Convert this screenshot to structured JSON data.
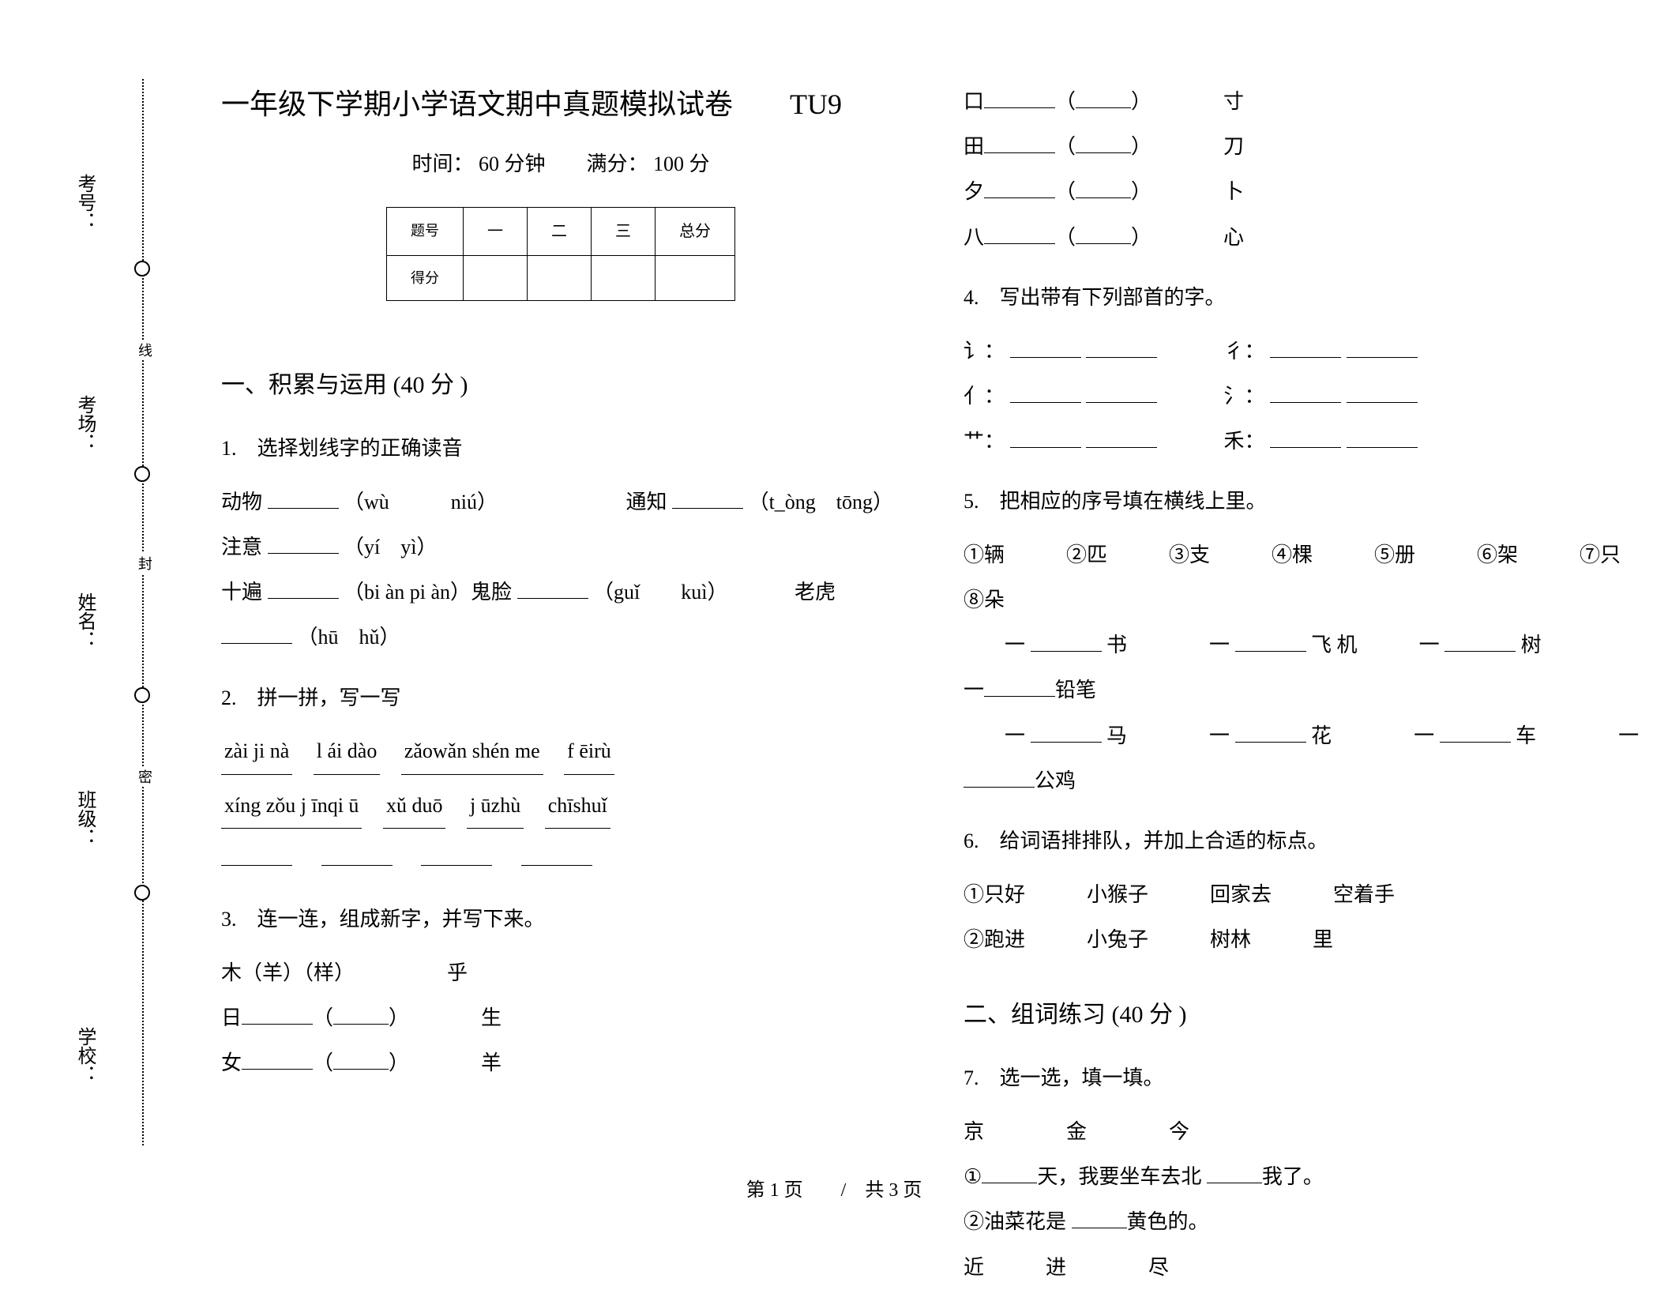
{
  "binding": {
    "labels": [
      "考号：",
      "考场：",
      "姓名：",
      "班级：",
      "学校："
    ],
    "markers": [
      "线",
      "封",
      "密"
    ]
  },
  "header": {
    "title": "一年级下学期小学语文期中真题模拟试卷　　TU9",
    "subtitle": "时间： 60 分钟　　满分： 100 分"
  },
  "scoreTable": {
    "headers": [
      "题号",
      "一",
      "二",
      "三",
      "总分"
    ],
    "rowLabel": "得分"
  },
  "sections": {
    "s1": "一、积累与运用  (40 分 )",
    "s2": "二、组词练习  (40 分 )"
  },
  "q1": {
    "title": "1.　选择划线字的正确读音",
    "line1a": "动物",
    "line1b": "（wù　　　niú）",
    "line1c": "通知",
    "line1d": "（t_òng　tōng）",
    "line1e": "注意",
    "line1f": "（yí　yì）",
    "line2a": "十遍",
    "line2b": "（bi àn pi àn）鬼脸",
    "line2c": "（guǐ　　kuì）",
    "line2d": "老虎",
    "line2e": "（hū　hǔ）"
  },
  "q2": {
    "title": "2.　拼一拼，写一写",
    "pinyins1": [
      "zài ji nà",
      "l ái dào",
      "zǎowǎn shén me",
      "f ēirù"
    ],
    "pinyins2": [
      "xíng zǒu j īnqi ū",
      "xǔ duō",
      "j ūzhù",
      "chīshuǐ"
    ]
  },
  "q3": {
    "title": "3.　连一连，组成新字，并写下来。",
    "rows": [
      {
        "left": "木（羊）（样）",
        "right": "乎"
      },
      {
        "left": "日",
        "right": "生"
      },
      {
        "left": "女",
        "right": "羊"
      },
      {
        "left": "口",
        "right": "寸"
      },
      {
        "left": "田",
        "right": "刀"
      },
      {
        "left": "夕",
        "right": "卜"
      },
      {
        "left": "八",
        "right": "心"
      }
    ]
  },
  "q4": {
    "title": "4.　写出带有下列部首的字。",
    "radicals": [
      "讠：",
      "彳：",
      "亻：",
      "氵：",
      "艹：",
      "禾："
    ]
  },
  "q5": {
    "title": "5.　把相应的序号填在横线上里。",
    "options": "①辆　　　②匹　　　③支　　　④棵　　　⑤册　　　⑥架　　　⑦只　　　⑧朵",
    "items": [
      [
        "书",
        "飞 机",
        ""
      ],
      [
        "树",
        "铅笔",
        ""
      ],
      [
        "马",
        "花",
        ""
      ],
      [
        "车",
        "公鸡",
        ""
      ]
    ],
    "tail1": "一",
    "tail2": "一",
    "tailWords": [
      "树",
      "车"
    ]
  },
  "q6": {
    "title": "6.　给词语排排队，并加上合适的标点。",
    "line1": "①只好　　　小猴子　　　回家去　　　空着手",
    "line2": "②跑进　　　小兔子　　　树林　　　里"
  },
  "q7": {
    "title": "7.　选一选，填一填。",
    "choices1": "京　　　　金　　　　今",
    "line1a": "①",
    "line1b": "天，我要坐车去北",
    "line1c": "我了。",
    "line2": "②油菜花是",
    "line2b": "黄色的。",
    "choices2": "近　　　进　　　　尽"
  },
  "footer": "第 1 页　　/　共 3 页"
}
